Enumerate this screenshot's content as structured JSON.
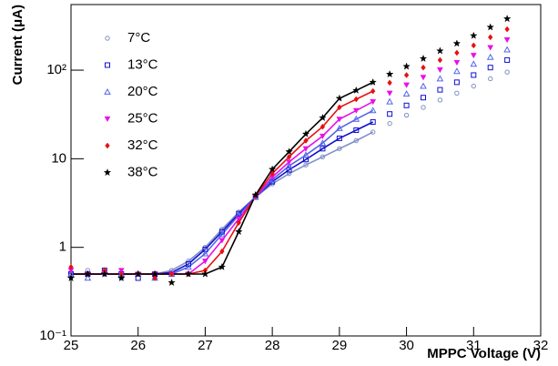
{
  "chart_data": {
    "type": "scatter",
    "x_label": "MPPC Voltage (V)",
    "y_label": "Current (μA)",
    "log_y": true,
    "legend": "upper left",
    "x": [
      25,
      25.25,
      25.5,
      25.75,
      26,
      26.25,
      26.5,
      26.75,
      27,
      27.25,
      27.5,
      27.75,
      28,
      28.25,
      28.5,
      28.75,
      29,
      29.25,
      29.5,
      29.75,
      30,
      30.25,
      30.5,
      30.75,
      31,
      31.25,
      31.5
    ],
    "xlim": [
      25,
      32
    ],
    "xticks": [
      25,
      26,
      27,
      28,
      29,
      30,
      31,
      32
    ],
    "ylim": [
      0.1,
      550
    ],
    "yticks": [
      {
        "value": 0.1,
        "label": "10⁻¹"
      },
      1,
      10,
      {
        "value": 100,
        "label": "10²"
      }
    ],
    "series": [
      {
        "name": "7°C",
        "color": "#7f8fc8",
        "marker": "circle",
        "values": [
          0.5,
          0.55,
          0.5,
          0.45,
          0.5,
          0.45,
          0.55,
          0.7,
          1.0,
          1.6,
          2.5,
          3.7,
          5.2,
          6.8,
          8.5,
          10.5,
          13,
          16,
          20,
          25,
          31,
          38,
          46,
          55,
          66,
          80,
          95
        ],
        "fit": [
          0.5,
          0.5,
          0.5,
          0.5,
          0.5,
          0.5,
          0.55,
          0.7,
          1.0,
          1.6,
          2.5,
          3.7,
          5.2,
          6.8,
          8.5,
          10.5,
          13,
          16,
          20,
          null,
          null,
          null,
          null,
          null,
          null,
          null,
          null
        ]
      },
      {
        "name": "13°C",
        "color": "#1010d0",
        "marker": "square",
        "values": [
          0.5,
          0.5,
          0.55,
          0.5,
          0.45,
          0.5,
          0.5,
          0.65,
          0.95,
          1.5,
          2.4,
          3.7,
          5.5,
          7.5,
          9.8,
          13,
          17,
          21,
          26,
          32,
          40,
          49,
          60,
          73,
          88,
          107,
          130
        ],
        "fit": [
          0.5,
          0.5,
          0.5,
          0.5,
          0.5,
          0.5,
          0.52,
          0.65,
          0.95,
          1.5,
          2.4,
          3.7,
          5.5,
          7.5,
          9.8,
          13,
          17,
          21,
          26,
          null,
          null,
          null,
          null,
          null,
          null,
          null,
          null
        ]
      },
      {
        "name": "20°C",
        "color": "#5566e8",
        "marker": "triangle",
        "values": [
          0.5,
          0.45,
          0.55,
          0.5,
          0.5,
          0.45,
          0.5,
          0.6,
          0.85,
          1.4,
          2.3,
          3.7,
          5.8,
          8.3,
          11,
          15,
          22,
          28,
          35,
          44,
          54,
          66,
          80,
          97,
          117,
          140,
          170
        ],
        "fit": [
          0.5,
          0.5,
          0.5,
          0.5,
          0.5,
          0.5,
          0.5,
          0.6,
          0.85,
          1.4,
          2.3,
          3.7,
          5.8,
          8.3,
          11,
          15,
          22,
          28,
          35,
          null,
          null,
          null,
          null,
          null,
          null,
          null,
          null
        ]
      },
      {
        "name": "25°C",
        "color": "#e810e8",
        "marker": "tri-down",
        "values": [
          0.55,
          0.5,
          0.5,
          0.55,
          0.5,
          0.5,
          0.5,
          0.5,
          0.7,
          1.2,
          2.1,
          3.7,
          6.2,
          9.2,
          13,
          18,
          28,
          35,
          44,
          55,
          68,
          83,
          101,
          122,
          147,
          180,
          220
        ],
        "fit": [
          0.5,
          0.5,
          0.5,
          0.5,
          0.5,
          0.5,
          0.5,
          0.5,
          0.7,
          1.2,
          2.1,
          3.7,
          6.2,
          9.2,
          13,
          18,
          28,
          35,
          44,
          null,
          null,
          null,
          null,
          null,
          null,
          null,
          null
        ]
      },
      {
        "name": "32°C",
        "color": "#e81010",
        "marker": "diamond",
        "values": [
          0.6,
          0.5,
          0.55,
          0.5,
          0.5,
          0.45,
          0.5,
          0.5,
          0.55,
          0.9,
          1.9,
          3.8,
          6.8,
          10.5,
          16,
          23,
          38,
          47,
          58,
          72,
          88,
          107,
          130,
          157,
          190,
          235,
          290
        ],
        "fit": [
          0.5,
          0.5,
          0.5,
          0.5,
          0.5,
          0.5,
          0.5,
          0.5,
          0.55,
          0.9,
          1.9,
          3.8,
          6.8,
          10.5,
          16,
          23,
          38,
          47,
          58,
          null,
          null,
          null,
          null,
          null,
          null,
          null,
          null
        ]
      },
      {
        "name": "38°C",
        "color": "#000000",
        "marker": "star",
        "values": [
          0.45,
          0.5,
          0.5,
          0.45,
          0.5,
          0.5,
          0.4,
          0.5,
          0.5,
          0.6,
          1.5,
          3.9,
          7.6,
          12,
          19,
          29,
          48,
          59,
          73,
          90,
          110,
          135,
          165,
          200,
          245,
          305,
          380
        ],
        "fit": [
          0.5,
          0.5,
          0.5,
          0.5,
          0.5,
          0.5,
          0.5,
          0.5,
          0.5,
          0.6,
          1.5,
          3.9,
          7.6,
          12,
          19,
          29,
          48,
          59,
          73,
          null,
          null,
          null,
          null,
          null,
          null,
          null,
          null
        ]
      }
    ]
  }
}
